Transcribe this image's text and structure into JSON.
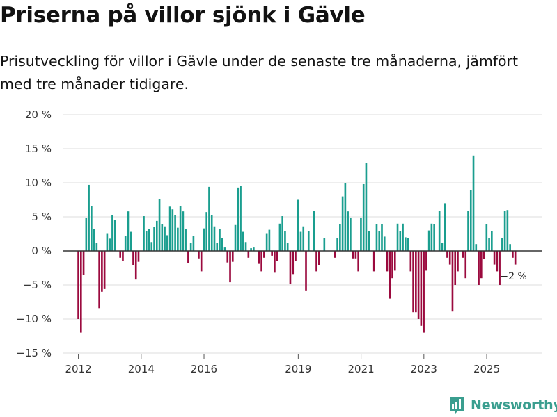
{
  "header": {
    "title": "Priserna på villor sjönk i Gävle",
    "subtitle": "Prisutveckling för villor i Gävle under de senaste tre månaderna, jämfört med tre månader tidigare."
  },
  "brand": {
    "name": "Newsworthy"
  },
  "colors": {
    "positive": "#1a9e8f",
    "negative": "#9b0a3e",
    "grid": "#dcdcdc",
    "zero": "#333333",
    "brand": "#3a9e8f"
  },
  "chart_data": {
    "type": "bar",
    "title": "Priserna på villor sjönk i Gävle",
    "ylabel": "",
    "ylim": [
      -15,
      20
    ],
    "yticks": [
      -15,
      -10,
      -5,
      0,
      5,
      10,
      15,
      20
    ],
    "ytick_labels": [
      "−15 %",
      "−10 %",
      "−5 %",
      "0 %",
      "5 %",
      "10 %",
      "15 %",
      "20 %"
    ],
    "xlim": [
      2011.5,
      2026.75
    ],
    "xticks": [
      2012,
      2014,
      2016,
      2019,
      2021,
      2023,
      2025
    ],
    "xtick_labels": [
      "2012",
      "2014",
      "2016",
      "2019",
      "2021",
      "2023",
      "2025"
    ],
    "start": 2012,
    "step": 0.0833,
    "annotation": {
      "text": "−2 %",
      "index": 166
    },
    "values": [
      -10,
      -12,
      -3.5,
      4.9,
      9.7,
      6.6,
      3.2,
      1.2,
      -8.4,
      -6,
      -5.6,
      2.6,
      1.8,
      5.3,
      4.5,
      0,
      -1,
      -1.5,
      2.2,
      5.8,
      2.8,
      -2.1,
      -4.2,
      -1.6,
      0,
      5.1,
      2.9,
      3.2,
      1.3,
      3.5,
      4.4,
      7.6,
      3.9,
      3.6,
      2.3,
      6.5,
      6.1,
      5.3,
      3.4,
      6.6,
      5.8,
      3.2,
      -1.8,
      1.2,
      2.2,
      0,
      -1.1,
      -3,
      3.3,
      5.7,
      9.4,
      5.3,
      3.6,
      1.2,
      3.2,
      1.9,
      0.5,
      -1.7,
      -4.6,
      -1.6,
      3.8,
      9.3,
      9.5,
      2.8,
      1.3,
      -1,
      0.4,
      0.5,
      0,
      -1.9,
      -3,
      -1,
      2.6,
      3.1,
      -0.7,
      -3.2,
      -1.5,
      4,
      5.1,
      2.9,
      1.2,
      -4.9,
      -3.4,
      -1.5,
      7.5,
      2.8,
      3.6,
      -5.8,
      2.9,
      0,
      5.9,
      -3,
      -2.1,
      0,
      1.9,
      0,
      0,
      0,
      -1,
      1.9,
      3.9,
      8,
      9.9,
      5.8,
      4.9,
      -1.1,
      -1.1,
      -3,
      4.9,
      9.8,
      12.9,
      2.9,
      0,
      -3,
      3.9,
      2.9,
      3.9,
      2.1,
      -3,
      -7,
      -4,
      -2.9,
      4,
      2.9,
      4,
      2,
      1.9,
      -3,
      -9,
      -9,
      -10,
      -11,
      -12,
      -2.9,
      3,
      4,
      3.9,
      0,
      5.9,
      1.2,
      7,
      -1,
      -2,
      -8.9,
      -5,
      -3,
      0,
      -1,
      -4,
      5.9,
      8.9,
      14,
      1,
      -5,
      -4,
      -1.2,
      3.9,
      1.9,
      2.9,
      -2,
      -3,
      -5,
      1.9,
      5.9,
      6,
      1,
      -1,
      -2
    ]
  }
}
